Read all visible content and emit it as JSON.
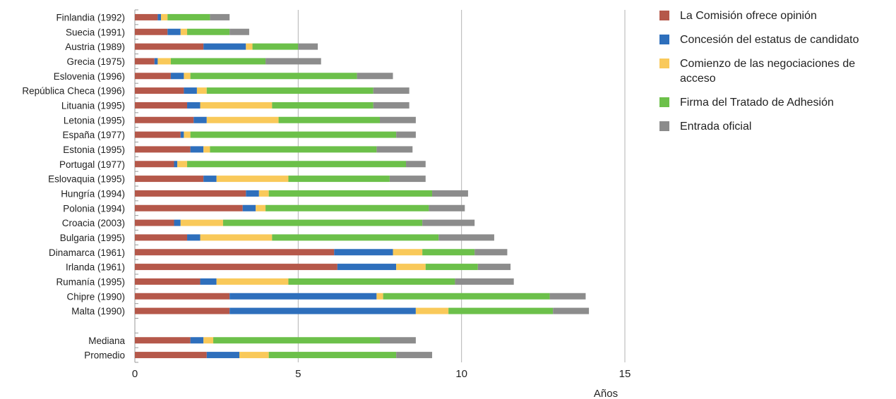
{
  "chart_data": {
    "type": "bar",
    "orientation": "horizontal",
    "stacked": true,
    "xlabel": "Años",
    "xlim": [
      0,
      15
    ],
    "xticks": [
      0,
      5,
      10,
      15
    ],
    "grid": "vertical",
    "legend_position": "right",
    "categories": [
      "Finlandia (1992)",
      "Suecia (1991)",
      "Austria (1989)",
      "Grecia (1975)",
      "Eslovenia (1996)",
      "República Checa (1996)",
      "Lituania (1995)",
      "Letonia (1995)",
      "España (1977)",
      "Estonia (1995)",
      "Portugal (1977)",
      "Eslovaquia (1995)",
      "Hungría (1994)",
      "Polonia (1994)",
      "Croacia (2003)",
      "Bulgaria (1995)",
      "Dinamarca (1961)",
      "Irlanda (1961)",
      "Rumanía (1995)",
      "Chipre (1990)",
      "Malta (1990)",
      "",
      "Mediana",
      "Promedio"
    ],
    "series": [
      {
        "name": "La Comisión ofrece opinión",
        "color": "#b5584a",
        "values": [
          0.7,
          1.0,
          2.1,
          0.6,
          1.1,
          1.5,
          1.6,
          1.8,
          1.4,
          1.7,
          1.2,
          2.1,
          3.4,
          3.3,
          1.2,
          1.6,
          6.1,
          6.2,
          2.0,
          2.9,
          2.9,
          null,
          1.7,
          2.2
        ]
      },
      {
        "name": "Concesión del estatus de candidato",
        "color": "#2e6fbc",
        "values": [
          0.1,
          0.4,
          1.3,
          0.1,
          0.4,
          0.4,
          0.4,
          0.4,
          0.1,
          0.4,
          0.1,
          0.4,
          0.4,
          0.4,
          0.2,
          0.4,
          1.8,
          1.8,
          0.5,
          4.5,
          5.7,
          null,
          0.4,
          1.0
        ]
      },
      {
        "name": "Comienzo de las negociaciones de acceso",
        "color": "#f9c95a",
        "values": [
          0.2,
          0.2,
          0.2,
          0.4,
          0.2,
          0.3,
          2.2,
          2.2,
          0.2,
          0.2,
          0.3,
          2.2,
          0.3,
          0.3,
          1.3,
          2.2,
          0.9,
          0.9,
          2.2,
          0.2,
          1.0,
          null,
          0.3,
          0.9
        ]
      },
      {
        "name": "Firma del Tratado de Adhesión",
        "color": "#6cc04a",
        "values": [
          1.3,
          1.3,
          1.4,
          2.9,
          5.1,
          5.1,
          3.1,
          3.1,
          6.3,
          5.1,
          6.7,
          3.1,
          5.0,
          5.0,
          6.1,
          5.1,
          1.6,
          1.6,
          5.1,
          5.1,
          3.2,
          null,
          5.1,
          3.9
        ]
      },
      {
        "name": "Entrada oficial",
        "color": "#8c8c8c",
        "values": [
          0.6,
          0.6,
          0.6,
          1.7,
          1.1,
          1.1,
          1.1,
          1.1,
          0.6,
          1.1,
          0.6,
          1.1,
          1.1,
          1.1,
          1.6,
          1.7,
          1.0,
          1.0,
          1.8,
          1.1,
          1.1,
          null,
          1.1,
          1.1
        ]
      }
    ]
  }
}
